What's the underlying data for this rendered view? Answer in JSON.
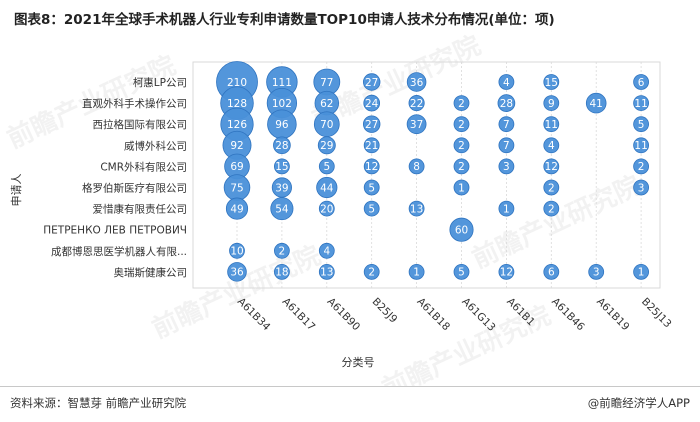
{
  "title": "图表8：2021年全球手术机器人行业专利申请数量TOP10申请人技术分布情况(单位：项)",
  "watermark": "前瞻产业研究院",
  "footer": {
    "source": "资料来源：智慧芽 前瞻产业研究院",
    "brand": "@前瞻经济学人APP"
  },
  "colors": {
    "bubble": "#4a90d9",
    "bubble_stroke": "#2f74c0",
    "label": "#ffffff",
    "grid": "#d9d9d9"
  },
  "chart_data": {
    "type": "bubble",
    "xlabel": "分类号",
    "ylabel": "申请人",
    "x_categories": [
      "A61B34",
      "A61B17",
      "A61B90",
      "B25J9",
      "A61B18",
      "A61G13",
      "A61B1",
      "A61B46",
      "A61B19",
      "B25J13"
    ],
    "y_categories": [
      "柯惠LP公司",
      "直观外科手术操作公司",
      "西拉格国际有限公司",
      "威博外科公司",
      "CMR外科有限公司",
      "格罗伯斯医疗有限公司",
      "爱惜康有限责任公司",
      "ПЕТРЕНКО ЛЕВ ПЕТРОВИЧ",
      "成都博恩思医学机器人有限...",
      "奥瑞斯健康公司"
    ],
    "values": [
      [
        210,
        111,
        77,
        27,
        36,
        null,
        4,
        15,
        null,
        6
      ],
      [
        128,
        102,
        62,
        24,
        22,
        2,
        28,
        9,
        41,
        11
      ],
      [
        126,
        96,
        70,
        27,
        37,
        2,
        7,
        11,
        null,
        5
      ],
      [
        92,
        28,
        29,
        21,
        null,
        2,
        7,
        4,
        null,
        11
      ],
      [
        69,
        15,
        5,
        12,
        8,
        2,
        3,
        12,
        null,
        2
      ],
      [
        75,
        39,
        44,
        5,
        null,
        1,
        null,
        2,
        null,
        3
      ],
      [
        49,
        54,
        20,
        5,
        13,
        null,
        1,
        2,
        null,
        null
      ],
      [
        null,
        null,
        null,
        null,
        null,
        60,
        null,
        null,
        null,
        null
      ],
      [
        10,
        2,
        4,
        null,
        null,
        null,
        null,
        null,
        null,
        null
      ],
      [
        36,
        18,
        13,
        2,
        1,
        5,
        12,
        6,
        3,
        1
      ]
    ]
  }
}
